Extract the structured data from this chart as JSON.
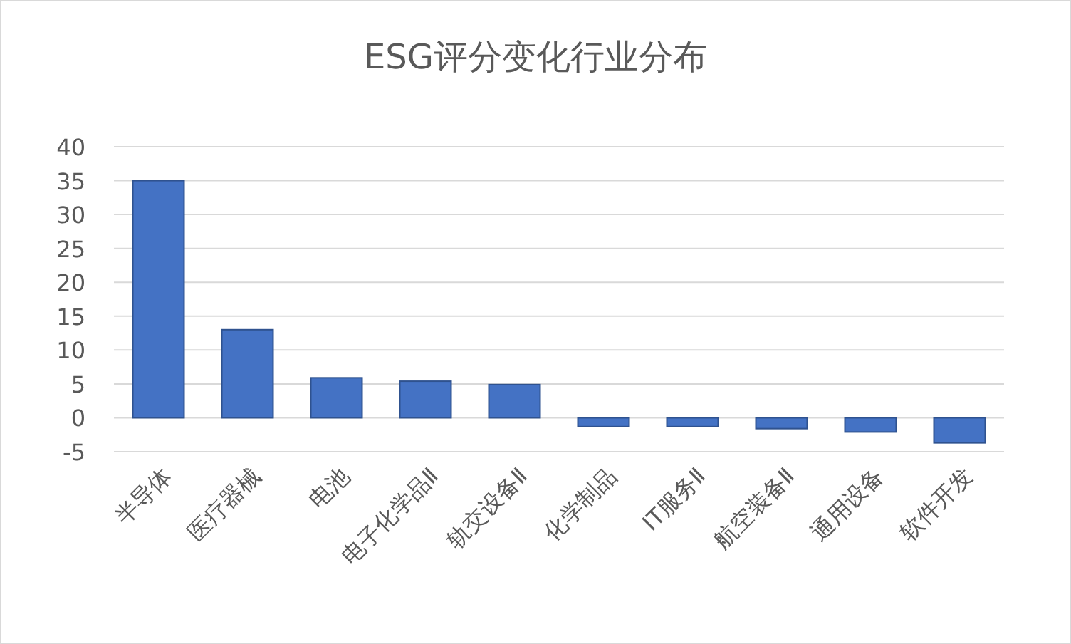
{
  "chart_data": {
    "type": "bar",
    "title": "ESG评分变化行业分布",
    "categories": [
      "半导体",
      "医疗器械",
      "电池",
      "电子化学品Ⅱ",
      "轨交设备Ⅱ",
      "化学制品",
      "IT服务Ⅱ",
      "航空装备Ⅱ",
      "通用设备",
      "软件开发"
    ],
    "values": [
      35,
      13,
      5.9,
      5.4,
      4.9,
      -1.3,
      -1.3,
      -1.6,
      -2.1,
      -3.7
    ],
    "color": "#4472c4",
    "ylim": [
      -5,
      40
    ],
    "yticks": [
      -5,
      0,
      5,
      10,
      15,
      20,
      25,
      30,
      35,
      40
    ],
    "grid": true
  }
}
